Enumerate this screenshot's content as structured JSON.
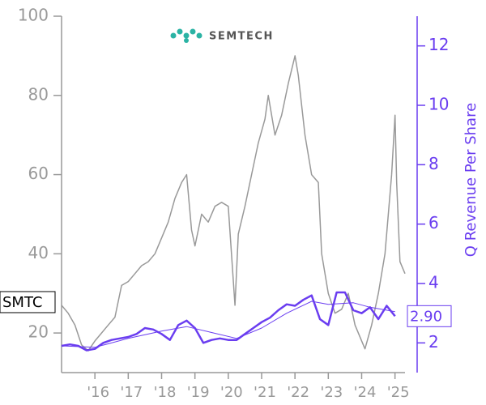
{
  "chart_data": {
    "type": "line",
    "logo_text": "SEMTECH",
    "y2_label": "Q Revenue Per Share",
    "xlim": [
      2015.0,
      2025.3
    ],
    "xticks": [
      {
        "value": 2016,
        "label": "'16"
      },
      {
        "value": 2017,
        "label": "'17"
      },
      {
        "value": 2018,
        "label": "'18"
      },
      {
        "value": 2019,
        "label": "'19"
      },
      {
        "value": 2020,
        "label": "'20"
      },
      {
        "value": 2021,
        "label": "'21"
      },
      {
        "value": 2022,
        "label": "'22"
      },
      {
        "value": 2023,
        "label": "'23"
      },
      {
        "value": 2024,
        "label": "'24"
      },
      {
        "value": 2025,
        "label": "'25"
      }
    ],
    "ylim": [
      10,
      100
    ],
    "yticks": [
      20,
      40,
      60,
      80,
      100
    ],
    "y2lim": [
      1,
      13
    ],
    "y2ticks": [
      2,
      4,
      6,
      8,
      10,
      12
    ],
    "series": [
      {
        "color": "#999999",
        "axis": "y",
        "width": 1.5,
        "x": [
          2015.0,
          2015.2,
          2015.4,
          2015.6,
          2015.8,
          2016.0,
          2016.2,
          2016.4,
          2016.6,
          2016.8,
          2017.0,
          2017.2,
          2017.4,
          2017.6,
          2017.8,
          2018.0,
          2018.2,
          2018.4,
          2018.6,
          2018.75,
          2018.9,
          2019.0,
          2019.2,
          2019.4,
          2019.6,
          2019.8,
          2020.0,
          2020.2,
          2020.3,
          2020.5,
          2020.7,
          2020.9,
          2021.1,
          2021.2,
          2021.4,
          2021.6,
          2021.8,
          2022.0,
          2022.1,
          2022.3,
          2022.5,
          2022.7,
          2022.8,
          2023.0,
          2023.2,
          2023.4,
          2023.6,
          2023.8,
          2024.0,
          2024.1,
          2024.3,
          2024.5,
          2024.7,
          2024.9,
          2025.0,
          2025.05,
          2025.15,
          2025.3
        ],
        "values": [
          27,
          25,
          22,
          17,
          15.5,
          18,
          20,
          22,
          24,
          32,
          33,
          35,
          37,
          38,
          40,
          44,
          48,
          54,
          58,
          60,
          46,
          42,
          50,
          48,
          52,
          53,
          52,
          27,
          45,
          52,
          60,
          68,
          74,
          80,
          70,
          75,
          83,
          90,
          85,
          70,
          60,
          58,
          40,
          30,
          25,
          26,
          30,
          22,
          18,
          16,
          22,
          30,
          40,
          60,
          75,
          58,
          38,
          35
        ]
      },
      {
        "color": "#6a3df0",
        "axis": "y2",
        "width": 2.5,
        "x": [
          2015.0,
          2015.25,
          2015.5,
          2015.75,
          2016.0,
          2016.25,
          2016.5,
          2016.75,
          2017.0,
          2017.25,
          2017.5,
          2017.75,
          2018.0,
          2018.25,
          2018.5,
          2018.75,
          2019.0,
          2019.25,
          2019.5,
          2019.75,
          2020.0,
          2020.25,
          2020.5,
          2020.75,
          2021.0,
          2021.25,
          2021.5,
          2021.75,
          2022.0,
          2022.25,
          2022.5,
          2022.75,
          2023.0,
          2023.25,
          2023.5,
          2023.75,
          2024.0,
          2024.25,
          2024.5,
          2024.75,
          2025.0
        ],
        "values": [
          1.9,
          1.95,
          1.9,
          1.75,
          1.8,
          2.0,
          2.1,
          2.15,
          2.2,
          2.3,
          2.5,
          2.45,
          2.3,
          2.1,
          2.6,
          2.75,
          2.5,
          2.0,
          2.1,
          2.15,
          2.1,
          2.1,
          2.3,
          2.5,
          2.7,
          2.85,
          3.1,
          3.3,
          3.25,
          3.45,
          3.6,
          2.8,
          2.6,
          3.7,
          3.7,
          3.1,
          3.0,
          3.2,
          2.8,
          3.25,
          2.9
        ]
      },
      {
        "color": "#6a3df0",
        "axis": "y2",
        "width": 1,
        "x": [
          2015.0,
          2016.0,
          2017.0,
          2018.0,
          2018.75,
          2019.5,
          2020.25,
          2021.0,
          2021.75,
          2022.5,
          2023.0,
          2023.75,
          2024.25,
          2025.0
        ],
        "values": [
          1.9,
          1.85,
          2.15,
          2.4,
          2.55,
          2.35,
          2.15,
          2.5,
          3.0,
          3.4,
          3.3,
          3.35,
          3.2,
          3.05
        ]
      }
    ],
    "annotations": [
      {
        "label": "SMTC",
        "value": 27.8,
        "axis": "y"
      },
      {
        "label": "2.90",
        "value": 2.9,
        "axis": "y2"
      }
    ]
  }
}
